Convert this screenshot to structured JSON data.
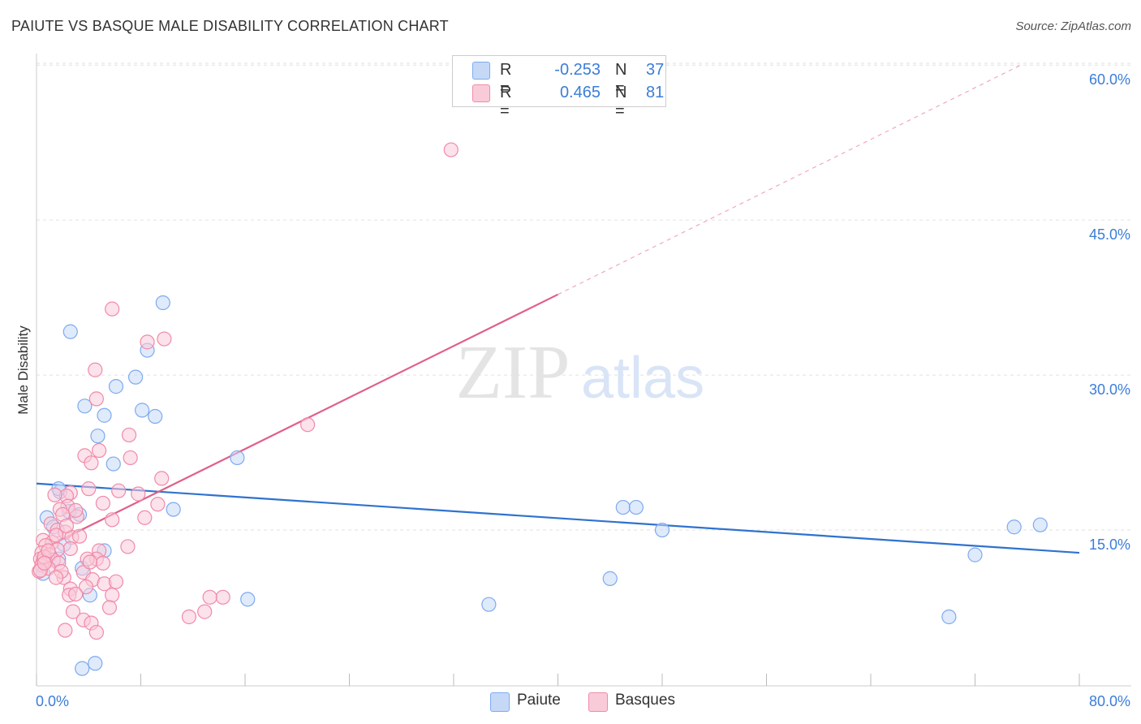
{
  "header": {
    "title": "PAIUTE VS BASQUE MALE DISABILITY CORRELATION CHART",
    "source": "Source: ZipAtlas.com"
  },
  "watermark": {
    "zip": "ZIP",
    "atlas": "atlas"
  },
  "stats_legend": {
    "rows": [
      {
        "r_label": "R =",
        "r_value": "-0.253",
        "n_label": "N =",
        "n_value": "37",
        "color": "#7eaaf0",
        "fill": "#c5d9f7"
      },
      {
        "r_label": "R =",
        "r_value": "0.465",
        "n_label": "N =",
        "n_value": "81",
        "color": "#f08aa8",
        "fill": "#f9cbd9"
      }
    ]
  },
  "series_legend": {
    "items": [
      "Paiute",
      "Basques"
    ]
  },
  "chart_data": {
    "type": "scatter",
    "title": "PAIUTE VS BASQUE MALE DISABILITY CORRELATION CHART",
    "xlabel": "",
    "ylabel": "Male Disability",
    "xlim": [
      0,
      80
    ],
    "ylim": [
      0,
      63
    ],
    "x_tick_labels": [
      "0.0%",
      "80.0%"
    ],
    "y_ticks": [
      15,
      30,
      45,
      60
    ],
    "y_tick_labels": [
      "15.0%",
      "30.0%",
      "45.0%",
      "60.0%"
    ],
    "grid": true,
    "series": [
      {
        "name": "Paiute",
        "color": "#7eaaf0",
        "fill": "#c5d9f7",
        "line_color": "#2f72cf",
        "trend": {
          "x": [
            0,
            80
          ],
          "y": [
            19.5,
            12.8
          ]
        },
        "points": [
          [
            2.6,
            34.2
          ],
          [
            3.7,
            27.0
          ],
          [
            4.7,
            24.1
          ],
          [
            5.2,
            26.1
          ],
          [
            6.1,
            28.9
          ],
          [
            5.9,
            21.4
          ],
          [
            7.6,
            29.8
          ],
          [
            8.1,
            26.6
          ],
          [
            8.5,
            32.4
          ],
          [
            9.7,
            37.0
          ],
          [
            9.1,
            26.0
          ],
          [
            10.5,
            17.0
          ],
          [
            15.4,
            22.0
          ],
          [
            0.8,
            16.2
          ],
          [
            1.3,
            15.3
          ],
          [
            1.8,
            18.7
          ],
          [
            3.3,
            16.5
          ],
          [
            1.7,
            19.0
          ],
          [
            2.5,
            16.8
          ],
          [
            1.7,
            12.2
          ],
          [
            2.1,
            13.6
          ],
          [
            3.5,
            11.3
          ],
          [
            4.1,
            8.7
          ],
          [
            5.2,
            13.0
          ],
          [
            16.2,
            8.3
          ],
          [
            34.7,
            7.8
          ],
          [
            45.0,
            17.2
          ],
          [
            46.0,
            17.2
          ],
          [
            48.0,
            15.0
          ],
          [
            44.0,
            10.3
          ],
          [
            72.0,
            12.6
          ],
          [
            75.0,
            15.3
          ],
          [
            77.0,
            15.5
          ],
          [
            70.0,
            6.6
          ],
          [
            4.5,
            2.1
          ],
          [
            3.5,
            1.6
          ],
          [
            0.5,
            10.8
          ]
        ]
      },
      {
        "name": "Basques",
        "color": "#f08aa8",
        "fill": "#f9cbd9",
        "line_color": "#e0608a",
        "trend": {
          "x": [
            1,
            40
          ],
          "y": [
            13.5,
            37.8
          ]
        },
        "trend_ext": {
          "x": [
            40,
            75.5
          ],
          "y": [
            37.8,
            60.0
          ]
        },
        "points": [
          [
            31.8,
            51.8
          ],
          [
            5.8,
            36.4
          ],
          [
            9.8,
            33.5
          ],
          [
            8.5,
            33.2
          ],
          [
            4.5,
            30.5
          ],
          [
            4.6,
            27.7
          ],
          [
            20.8,
            25.2
          ],
          [
            7.1,
            24.2
          ],
          [
            4.8,
            22.7
          ],
          [
            3.7,
            22.2
          ],
          [
            7.2,
            22.0
          ],
          [
            4.2,
            21.5
          ],
          [
            9.6,
            20.0
          ],
          [
            4.0,
            19.0
          ],
          [
            6.3,
            18.8
          ],
          [
            7.8,
            18.5
          ],
          [
            2.6,
            18.6
          ],
          [
            2.3,
            18.3
          ],
          [
            1.4,
            18.4
          ],
          [
            5.1,
            17.6
          ],
          [
            9.3,
            17.5
          ],
          [
            2.4,
            17.3
          ],
          [
            1.8,
            17.0
          ],
          [
            2.0,
            16.5
          ],
          [
            3.1,
            16.3
          ],
          [
            5.8,
            16.0
          ],
          [
            8.3,
            16.2
          ],
          [
            1.1,
            15.6
          ],
          [
            1.6,
            15.0
          ],
          [
            2.2,
            14.8
          ],
          [
            0.5,
            14.0
          ],
          [
            2.7,
            14.3
          ],
          [
            1.2,
            13.8
          ],
          [
            0.7,
            13.5
          ],
          [
            2.6,
            13.2
          ],
          [
            7.0,
            13.4
          ],
          [
            0.4,
            12.8
          ],
          [
            1.6,
            13.1
          ],
          [
            1.0,
            12.6
          ],
          [
            0.3,
            12.2
          ],
          [
            1.3,
            12.1
          ],
          [
            0.5,
            12.0
          ],
          [
            4.8,
            13.0
          ],
          [
            4.6,
            12.2
          ],
          [
            1.7,
            11.8
          ],
          [
            0.4,
            11.6
          ],
          [
            0.9,
            11.3
          ],
          [
            2.1,
            10.4
          ],
          [
            3.6,
            10.9
          ],
          [
            0.2,
            11.0
          ],
          [
            4.3,
            10.2
          ],
          [
            1.9,
            11.0
          ],
          [
            1.5,
            10.4
          ],
          [
            2.6,
            9.3
          ],
          [
            3.8,
            9.5
          ],
          [
            2.5,
            8.7
          ],
          [
            5.2,
            9.8
          ],
          [
            6.1,
            10.0
          ],
          [
            5.8,
            8.7
          ],
          [
            3.0,
            8.8
          ],
          [
            0.3,
            11.1
          ],
          [
            5.6,
            7.5
          ],
          [
            2.8,
            7.1
          ],
          [
            3.6,
            6.3
          ],
          [
            4.2,
            6.0
          ],
          [
            2.2,
            5.3
          ],
          [
            4.6,
            5.1
          ],
          [
            14.3,
            8.5
          ],
          [
            13.3,
            8.5
          ],
          [
            12.9,
            7.1
          ],
          [
            11.7,
            6.6
          ],
          [
            5.1,
            11.8
          ],
          [
            3.9,
            12.2
          ],
          [
            4.1,
            11.9
          ],
          [
            0.6,
            12.4
          ],
          [
            0.9,
            13.0
          ],
          [
            1.5,
            14.5
          ],
          [
            2.3,
            15.4
          ],
          [
            3.3,
            14.4
          ],
          [
            3.0,
            16.9
          ],
          [
            0.6,
            11.8
          ]
        ]
      }
    ]
  }
}
